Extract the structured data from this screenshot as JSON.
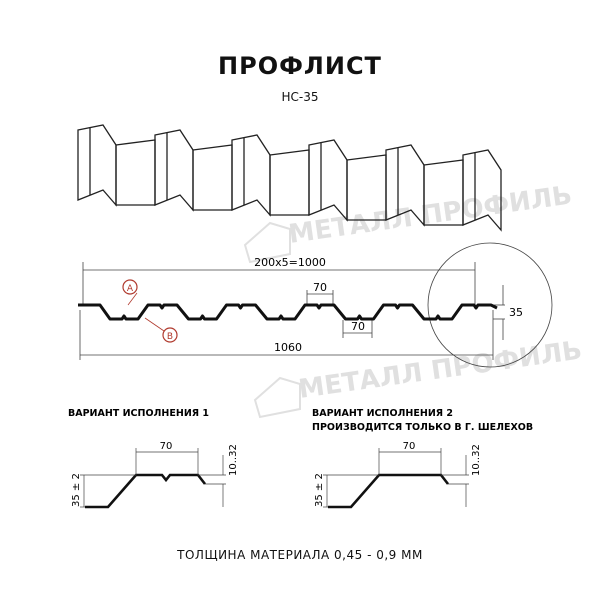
{
  "header": {
    "title": "ПРОФЛИСТ",
    "subtitle": "НС-35"
  },
  "watermark": "МЕТАЛЛ ПРОФИЛЬ",
  "section": {
    "pitch_dim": "200x5=1000",
    "total_width": "1060",
    "top_width": "70",
    "bottom_width": "70",
    "height": "35",
    "marker_a": "A",
    "marker_b": "B"
  },
  "variants": [
    {
      "title_line1": "ВАРИАНТ ИСПОЛНЕНИЯ 1",
      "title_line2": "",
      "width": "70",
      "height": "35 ± 2",
      "flange": "10..32"
    },
    {
      "title_line1": "ВАРИАНТ ИСПОЛНЕНИЯ 2",
      "title_line2": "ПРОИЗВОДИТСЯ ТОЛЬКО В Г. ШЕЛЕХОВ",
      "width": "70",
      "height": "35 ± 2",
      "flange": "10..32"
    }
  ],
  "footer": "ТОЛЩИНА МАТЕРИАЛА 0,45 - 0,9 ММ",
  "colors": {
    "marker": "#b03a2e",
    "watermark": "#d8d8d8",
    "line": "#111111"
  }
}
